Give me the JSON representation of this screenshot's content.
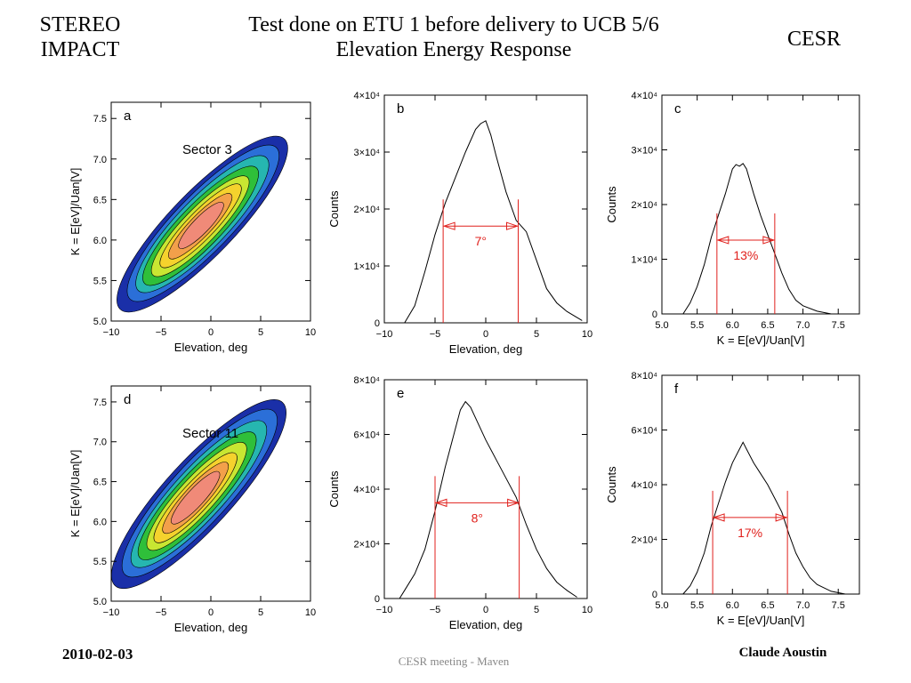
{
  "header": {
    "left_line1": "STEREO",
    "left_line2": "IMPACT",
    "center_line1": "Test done on ETU 1 before delivery to UCB 5/6",
    "center_line2": "Elevation Energy Response",
    "right": "CESR"
  },
  "footer": {
    "date": "2010-02-03",
    "meeting": "CESR meeting - Maven",
    "author": "Claude Aoustin"
  },
  "colors": {
    "contour_levels": [
      "#1a2fa8",
      "#2b6fd8",
      "#26b6b0",
      "#2fbf3a",
      "#c8e632",
      "#f5d22d",
      "#f3a04a",
      "#f08a78"
    ],
    "marker": "#e0201c"
  },
  "chart_data": [
    {
      "id": "a",
      "type": "heatmap",
      "panel_label": "a",
      "annotation": "Sector 3",
      "xlabel": "Elevation, deg",
      "ylabel": "K = E[eV]/Uan[V]",
      "xlim": [
        -10,
        10
      ],
      "ylim": [
        5.0,
        7.7
      ],
      "xticks": [
        "−10",
        "−5",
        "0",
        "5",
        "10"
      ],
      "xtick_values": [
        -10,
        -5,
        0,
        5,
        10
      ],
      "yticks": [
        "5.0",
        "5.5",
        "6.0",
        "6.5",
        "7.0",
        "7.5"
      ],
      "ytick_values": [
        5.0,
        5.5,
        6.0,
        6.5,
        7.0,
        7.5
      ],
      "ridge": {
        "x": [
          -7.5,
          9.0
        ],
        "y": [
          5.3,
          7.4
        ]
      },
      "contour_halfwidths": [
        {
          "along": [
            1.0,
            1.0
          ],
          "across": 0.95
        },
        {
          "along": [
            0.88,
            0.9
          ],
          "across": 0.82
        },
        {
          "along": [
            0.78,
            0.78
          ],
          "across": 0.7
        },
        {
          "along": [
            0.7,
            0.66
          ],
          "across": 0.58
        },
        {
          "along": [
            0.6,
            0.55
          ],
          "across": 0.46
        },
        {
          "along": [
            0.5,
            0.46
          ],
          "across": 0.34
        },
        {
          "along": [
            0.4,
            0.35
          ],
          "across": 0.24
        },
        {
          "along": [
            0.28,
            0.25
          ],
          "across": 0.15
        }
      ]
    },
    {
      "id": "b",
      "type": "line",
      "panel_label": "b",
      "xlabel": "Elevation, deg",
      "ylabel": "Counts",
      "xlim": [
        -10,
        10
      ],
      "ylim": [
        0,
        40000
      ],
      "xticks": [
        "−10",
        "−5",
        "0",
        "5",
        "10"
      ],
      "xtick_values": [
        -10,
        -5,
        0,
        5,
        10
      ],
      "yticks": [
        "0",
        "1×10⁴",
        "2×10⁴",
        "3×10⁴",
        "4×10⁴"
      ],
      "ytick_values": [
        0,
        10000,
        20000,
        30000,
        40000
      ],
      "x": [
        -8,
        -7,
        -6,
        -5,
        -4,
        -3,
        -2,
        -1,
        -0.5,
        0,
        0.5,
        1,
        2,
        3,
        4,
        5,
        6,
        7,
        8,
        9.5
      ],
      "y": [
        0,
        3000,
        9000,
        15500,
        21000,
        25500,
        30000,
        34000,
        35000,
        35500,
        33000,
        29500,
        23000,
        18000,
        16000,
        11000,
        6000,
        3500,
        2000,
        400
      ],
      "markers": {
        "x1": -4.2,
        "x2": 3.2,
        "arrow_y": 17000,
        "label": "7°"
      }
    },
    {
      "id": "c",
      "type": "line",
      "panel_label": "c",
      "xlabel": "K = E[eV]/Uan[V]",
      "ylabel": "Counts",
      "xlim": [
        5.0,
        7.8
      ],
      "ylim": [
        0,
        40000
      ],
      "xticks": [
        "5.0",
        "5.5",
        "6.0",
        "6.5",
        "7.0",
        "7.5"
      ],
      "xtick_values": [
        5.0,
        5.5,
        6.0,
        6.5,
        7.0,
        7.5
      ],
      "yticks": [
        "0",
        "1×10⁴",
        "2×10⁴",
        "3×10⁴",
        "4×10⁴"
      ],
      "ytick_values": [
        0,
        10000,
        20000,
        30000,
        40000
      ],
      "x": [
        5.3,
        5.4,
        5.5,
        5.6,
        5.7,
        5.8,
        5.9,
        6.0,
        6.05,
        6.1,
        6.15,
        6.2,
        6.3,
        6.4,
        6.5,
        6.6,
        6.7,
        6.8,
        6.9,
        7.0,
        7.2,
        7.4
      ],
      "y": [
        0,
        2000,
        5000,
        9000,
        14000,
        18000,
        22000,
        26500,
        27300,
        27000,
        27500,
        26500,
        22000,
        18000,
        14500,
        11000,
        7500,
        4500,
        2500,
        1500,
        500,
        0
      ],
      "markers": {
        "x1": 5.78,
        "x2": 6.6,
        "arrow_y": 13500,
        "label": "13%"
      }
    },
    {
      "id": "d",
      "type": "heatmap",
      "panel_label": "d",
      "annotation": "Sector 11",
      "xlabel": "Elevation, deg",
      "ylabel": "K = E[eV]/Uan[V]",
      "xlim": [
        -10,
        10
      ],
      "ylim": [
        5.0,
        7.7
      ],
      "xticks": [
        "−10",
        "−5",
        "0",
        "5",
        "10"
      ],
      "xtick_values": [
        -10,
        -5,
        0,
        5,
        10
      ],
      "yticks": [
        "5.0",
        "5.5",
        "6.0",
        "6.5",
        "7.0",
        "7.5"
      ],
      "ytick_values": [
        5.0,
        5.5,
        6.0,
        6.5,
        7.0,
        7.5
      ],
      "ridge": {
        "x": [
          -8.0,
          8.8
        ],
        "y": [
          5.35,
          7.65
        ]
      },
      "contour_halfwidths": [
        {
          "along": [
            1.0,
            1.0
          ],
          "across": 1.0
        },
        {
          "along": [
            0.88,
            0.9
          ],
          "across": 0.86
        },
        {
          "along": [
            0.78,
            0.78
          ],
          "across": 0.72
        },
        {
          "along": [
            0.7,
            0.66
          ],
          "across": 0.6
        },
        {
          "along": [
            0.6,
            0.55
          ],
          "across": 0.48
        },
        {
          "along": [
            0.52,
            0.44
          ],
          "across": 0.36
        },
        {
          "along": [
            0.42,
            0.34
          ],
          "across": 0.26
        },
        {
          "along": [
            0.32,
            0.24
          ],
          "across": 0.17
        }
      ]
    },
    {
      "id": "e",
      "type": "line",
      "panel_label": "e",
      "xlabel": "Elevation, deg",
      "ylabel": "Counts",
      "xlim": [
        -10,
        10
      ],
      "ylim": [
        0,
        80000
      ],
      "xticks": [
        "−10",
        "−5",
        "0",
        "5",
        "10"
      ],
      "xtick_values": [
        -10,
        -5,
        0,
        5,
        10
      ],
      "yticks": [
        "0",
        "2×10⁴",
        "4×10⁴",
        "6×10⁴",
        "8×10⁴"
      ],
      "ytick_values": [
        0,
        20000,
        40000,
        60000,
        80000
      ],
      "x": [
        -8.5,
        -8,
        -7,
        -6,
        -5,
        -4,
        -3,
        -2.5,
        -2,
        -1.5,
        -1,
        0,
        1,
        2,
        3,
        4,
        5,
        6,
        7,
        8,
        9
      ],
      "y": [
        0,
        3000,
        9000,
        18000,
        32000,
        48000,
        62000,
        69000,
        72000,
        70000,
        66000,
        58000,
        51000,
        44000,
        37000,
        27000,
        18000,
        11000,
        6000,
        3000,
        500
      ],
      "markers": {
        "x1": -5.0,
        "x2": 3.3,
        "arrow_y": 35000,
        "label": "8°"
      }
    },
    {
      "id": "f",
      "type": "line",
      "panel_label": "f",
      "xlabel": "K = E[eV]/Uan[V]",
      "ylabel": "Counts",
      "xlim": [
        5.0,
        7.8
      ],
      "ylim": [
        0,
        80000
      ],
      "xticks": [
        "5.0",
        "5.5",
        "6.0",
        "6.5",
        "7.0",
        "7.5"
      ],
      "xtick_values": [
        5.0,
        5.5,
        6.0,
        6.5,
        7.0,
        7.5
      ],
      "yticks": [
        "0",
        "2×10⁴",
        "4×10⁴",
        "6×10⁴",
        "8×10⁴"
      ],
      "ytick_values": [
        0,
        20000,
        40000,
        60000,
        80000
      ],
      "x": [
        5.3,
        5.4,
        5.5,
        5.6,
        5.7,
        5.8,
        5.9,
        6.0,
        6.1,
        6.15,
        6.2,
        6.3,
        6.4,
        6.5,
        6.6,
        6.7,
        6.8,
        6.9,
        7.0,
        7.1,
        7.2,
        7.4,
        7.6
      ],
      "y": [
        0,
        3000,
        8000,
        15000,
        25000,
        33000,
        41000,
        48000,
        53000,
        55500,
        53000,
        48000,
        44000,
        40000,
        35000,
        30000,
        22000,
        15000,
        10000,
        6000,
        3500,
        1000,
        0
      ],
      "markers": {
        "x1": 5.72,
        "x2": 6.78,
        "arrow_y": 28000,
        "label": "17%"
      }
    }
  ]
}
